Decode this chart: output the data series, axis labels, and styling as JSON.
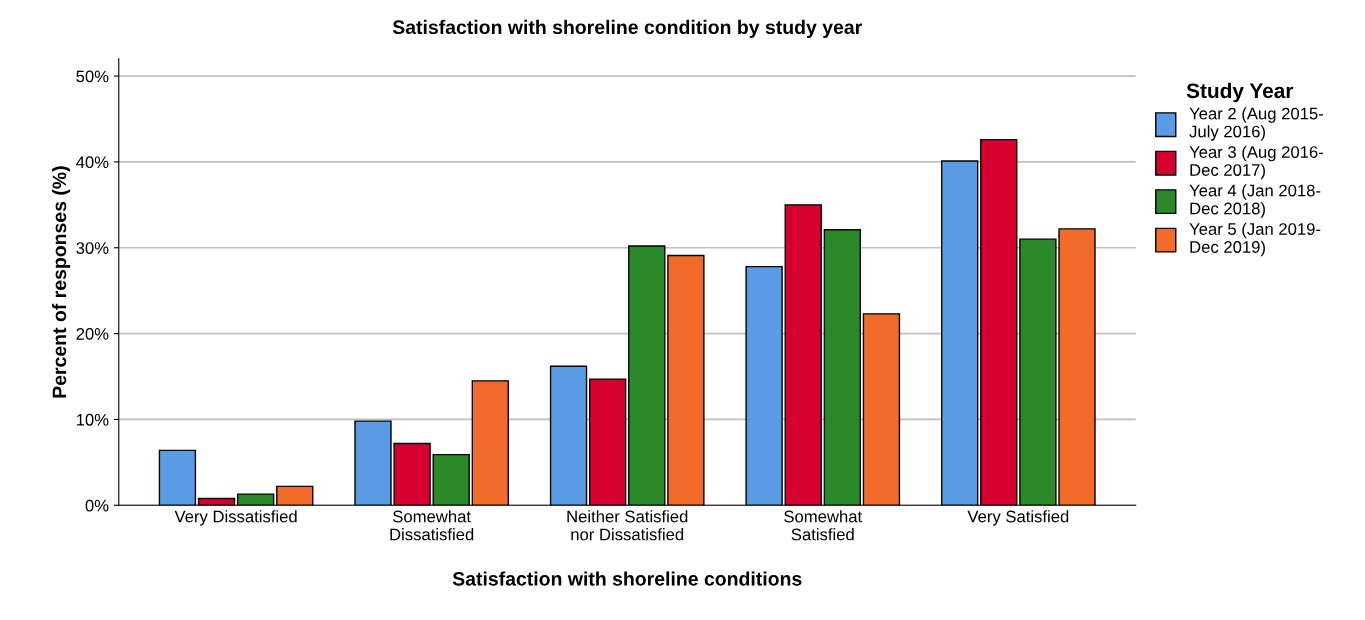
{
  "chart_data": {
    "type": "bar",
    "title": "Satisfaction with shoreline condition by study year",
    "xlabel": "Satisfaction with shoreline conditions",
    "ylabel": "Percent of responses (%)",
    "legend_title": "Study Year",
    "categories": [
      "Very Dissatisfied",
      "Somewhat\nDissatisfied",
      "Neither Satisfied\nnor Dissatisfied",
      "Somewhat\nSatisfied",
      "Very Satisfied"
    ],
    "series": [
      {
        "name": "Year 2 (Aug 2015-\nJuly 2016)",
        "color": "#5a9be6",
        "values": [
          6.4,
          9.8,
          16.2,
          27.8,
          40.1
        ]
      },
      {
        "name": "Year 3 (Aug 2016-\nDec 2017)",
        "color": "#d8002f",
        "values": [
          0.8,
          7.2,
          14.7,
          35.0,
          42.6
        ]
      },
      {
        "name": "Year 4 (Jan 2018-\nDec 2018)",
        "color": "#2a8a2a",
        "values": [
          1.3,
          5.9,
          30.2,
          32.1,
          31.0
        ]
      },
      {
        "name": "Year 5 (Jan 2019-\nDec 2019)",
        "color": "#f26b2a",
        "values": [
          2.2,
          14.5,
          29.1,
          22.3,
          32.2
        ]
      }
    ],
    "ylim": [
      0,
      52
    ],
    "yticks": [
      {
        "value": 0,
        "label": "0%"
      },
      {
        "value": 10,
        "label": "10%"
      },
      {
        "value": 20,
        "label": "20%"
      },
      {
        "value": 30,
        "label": "30%"
      },
      {
        "value": 40,
        "label": "40%"
      },
      {
        "value": 50,
        "label": "50%"
      }
    ],
    "grid": "y",
    "legend": "right"
  }
}
